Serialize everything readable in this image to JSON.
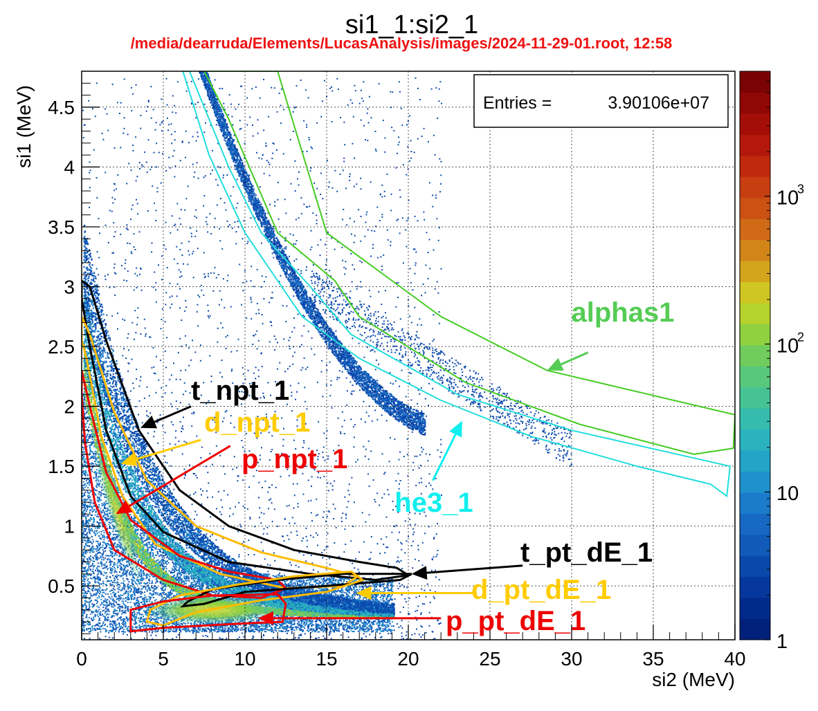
{
  "chart_data": {
    "type": "heatmap",
    "title": "si1_1:si2_1",
    "subtitle": "/media/dearruda/Elements/LucasAnalysis/images/2024-11-29-01.root,  12:58",
    "xlabel": "si2 (MeV)",
    "ylabel": "si1 (MeV)",
    "xlim": [
      0,
      40
    ],
    "ylim": [
      0.05,
      4.8
    ],
    "x_ticks": [
      "0",
      "5",
      "10",
      "15",
      "20",
      "25",
      "30",
      "35",
      "40"
    ],
    "y_ticks": [
      "0.5",
      "1",
      "1.5",
      "2",
      "2.5",
      "3",
      "3.5",
      "4",
      "4.5"
    ],
    "grid": true,
    "z_scale": "log",
    "z_range": [
      1,
      7000
    ],
    "z_ticks": [
      "1",
      "10",
      "10",
      "10"
    ],
    "z_tick_exponents": [
      "",
      "",
      "2",
      "3"
    ],
    "stats": {
      "label": "Entries =",
      "value": "3.90106e+07"
    },
    "palette": [
      "#00207a",
      "#002a8c",
      "#05379c",
      "#0a48ac",
      "#115ab8",
      "#1668c2",
      "#1a7ccb",
      "#1f91cc",
      "#24a4c6",
      "#2ab3bf",
      "#35bcae",
      "#45c395",
      "#58c87c",
      "#70cc5c",
      "#8fd141",
      "#b6d22c",
      "#d0c623",
      "#d3a51d",
      "#d2861a",
      "#d06a17",
      "#cc5214",
      "#c73e11",
      "#c0290e",
      "#b3180b",
      "#a40e08",
      "#900706",
      "#7a0303"
    ],
    "cuts": [
      {
        "name": "alphas1",
        "color": "#44cc22",
        "label_color": "#55cc55",
        "points": [
          [
            12,
            4.8
          ],
          [
            15,
            3.45
          ],
          [
            19.5,
            3.0
          ],
          [
            22,
            2.75
          ],
          [
            28.5,
            2.3
          ],
          [
            40,
            1.93
          ],
          [
            39.9,
            1.65
          ],
          [
            37.5,
            1.6
          ],
          [
            30.5,
            1.85
          ],
          [
            23.5,
            2.2
          ],
          [
            17,
            2.75
          ],
          [
            15.5,
            3.05
          ],
          [
            12,
            3.45
          ],
          [
            9,
            4.4
          ],
          [
            7.5,
            4.8
          ]
        ],
        "arrow": [
          [
            31,
            2.45
          ],
          [
            28.5,
            2.3
          ]
        ]
      },
      {
        "name": "he3_1",
        "color": "#22dddd",
        "label_color": "#11eeee",
        "points": [
          [
            6.2,
            4.8
          ],
          [
            7.8,
            4.1
          ],
          [
            10,
            3.45
          ],
          [
            13.5,
            2.75
          ],
          [
            17,
            2.4
          ],
          [
            22,
            2.05
          ],
          [
            27.5,
            1.75
          ],
          [
            34,
            1.5
          ],
          [
            38.5,
            1.35
          ],
          [
            39.5,
            1.25
          ],
          [
            39.7,
            1.5
          ],
          [
            30,
            1.8
          ],
          [
            23,
            2.1
          ],
          [
            16.5,
            2.6
          ],
          [
            14,
            3.0
          ],
          [
            11,
            3.45
          ],
          [
            9,
            4.0
          ],
          [
            6.6,
            4.8
          ]
        ],
        "arrow": [
          [
            21.5,
            1.38
          ],
          [
            23.3,
            1.88
          ]
        ]
      },
      {
        "name": "t_npt_1",
        "color": "#000000",
        "label_color": "#000000",
        "points": [
          [
            0,
            3.05
          ],
          [
            0.5,
            3.0
          ],
          [
            1.5,
            2.55
          ],
          [
            3.5,
            1.8
          ],
          [
            6,
            1.3
          ],
          [
            9,
            1.0
          ],
          [
            13,
            0.8
          ],
          [
            17,
            0.7
          ],
          [
            19.3,
            0.65
          ],
          [
            20,
            0.59
          ],
          [
            18,
            0.55
          ],
          [
            14,
            0.6
          ],
          [
            9,
            0.7
          ],
          [
            5,
            0.95
          ],
          [
            3,
            1.25
          ],
          [
            1.5,
            1.8
          ],
          [
            0.5,
            2.5
          ],
          [
            0,
            2.9
          ]
        ],
        "arrow": [
          [
            6.7,
            2.0
          ],
          [
            3.6,
            1.82
          ]
        ]
      },
      {
        "name": "d_npt_1",
        "color": "#ffbb00",
        "label_color": "#ffcc00",
        "points": [
          [
            0,
            2.75
          ],
          [
            0.5,
            2.6
          ],
          [
            2,
            1.95
          ],
          [
            4,
            1.38
          ],
          [
            7,
            1.0
          ],
          [
            11,
            0.78
          ],
          [
            15,
            0.65
          ],
          [
            16.9,
            0.58
          ],
          [
            16,
            0.5
          ],
          [
            12.5,
            0.48
          ],
          [
            8.5,
            0.6
          ],
          [
            4.5,
            0.85
          ],
          [
            2.5,
            1.25
          ],
          [
            1.2,
            1.75
          ],
          [
            0.3,
            2.4
          ],
          [
            0,
            2.55
          ]
        ],
        "arrow": [
          [
            7.3,
            1.72
          ],
          [
            2.4,
            1.52
          ]
        ]
      },
      {
        "name": "p_npt_1",
        "color": "#ee0000",
        "label_color": "#ee0000",
        "points": [
          [
            0,
            2.3
          ],
          [
            0.5,
            2.0
          ],
          [
            1.5,
            1.45
          ],
          [
            3,
            1.05
          ],
          [
            6,
            0.75
          ],
          [
            9,
            0.62
          ],
          [
            12,
            0.55
          ],
          [
            12.5,
            0.48
          ],
          [
            11,
            0.4
          ],
          [
            8,
            0.42
          ],
          [
            5,
            0.55
          ],
          [
            2,
            0.8
          ],
          [
            0.8,
            1.2
          ],
          [
            0.2,
            1.7
          ],
          [
            0,
            2.1
          ]
        ],
        "arrow": [
          [
            9.1,
            1.67
          ],
          [
            2.1,
            1.1
          ]
        ]
      },
      {
        "name": "t_pt_dE_1",
        "color": "#000000",
        "label_color": "#000000",
        "points": [
          [
            6.5,
            0.37
          ],
          [
            8,
            0.47
          ],
          [
            12,
            0.55
          ],
          [
            16,
            0.6
          ],
          [
            20.2,
            0.6
          ],
          [
            19.5,
            0.55
          ],
          [
            15,
            0.5
          ],
          [
            10,
            0.45
          ],
          [
            7.5,
            0.35
          ],
          [
            6.2,
            0.33
          ]
        ],
        "arrow": [
          [
            27,
            0.67
          ],
          [
            20.2,
            0.6
          ]
        ]
      },
      {
        "name": "d_pt_dE_1",
        "color": "#ffbb00",
        "label_color": "#ffcc00",
        "points": [
          [
            4.2,
            0.3
          ],
          [
            6,
            0.42
          ],
          [
            9.5,
            0.51
          ],
          [
            13,
            0.58
          ],
          [
            16.5,
            0.62
          ],
          [
            17.2,
            0.55
          ],
          [
            15,
            0.45
          ],
          [
            11,
            0.38
          ],
          [
            7,
            0.28
          ],
          [
            5,
            0.17
          ],
          [
            4,
            0.2
          ]
        ],
        "arrow": [
          [
            24.2,
            0.44
          ],
          [
            16.8,
            0.44
          ]
        ]
      },
      {
        "name": "p_pt_dE_1",
        "color": "#ee0000",
        "label_color": "#ee0000",
        "points": [
          [
            3,
            0.3
          ],
          [
            5,
            0.37
          ],
          [
            8,
            0.42
          ],
          [
            12,
            0.43
          ],
          [
            12.5,
            0.35
          ],
          [
            12.3,
            0.2
          ],
          [
            9,
            0.18
          ],
          [
            5,
            0.15
          ],
          [
            3,
            0.12
          ],
          [
            3,
            0.25
          ]
        ],
        "arrow": [
          [
            22,
            0.23
          ],
          [
            10.8,
            0.23
          ]
        ]
      }
    ]
  }
}
